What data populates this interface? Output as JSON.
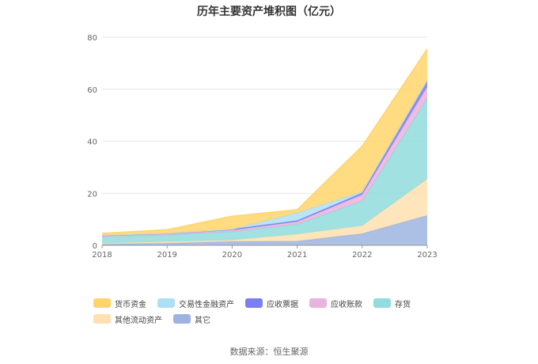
{
  "chart_data": {
    "type": "area",
    "stacked": true,
    "title": "历年主要资产堆积图（亿元）",
    "categories": [
      "2018",
      "2019",
      "2020",
      "2021",
      "2022",
      "2023"
    ],
    "ylim": [
      0,
      80
    ],
    "yticks": [
      0,
      20,
      40,
      60,
      80
    ],
    "grid": true,
    "legend_position": "bottom",
    "series": [
      {
        "name": "其它",
        "color": "#9db4e0",
        "values": [
          0.5,
          0.8,
          1.5,
          1.6,
          4.5,
          11.5
        ]
      },
      {
        "name": "其他流动资产",
        "color": "#ffe0b0",
        "values": [
          0.3,
          0.6,
          0.5,
          2.7,
          3.0,
          14.0
        ]
      },
      {
        "name": "存货",
        "color": "#91dcdc",
        "values": [
          2.5,
          2.6,
          3.2,
          3.8,
          9.5,
          31.0
        ]
      },
      {
        "name": "应收账款",
        "color": "#e8b3dd",
        "values": [
          0.3,
          0.3,
          0.6,
          1.0,
          2.5,
          4.5
        ]
      },
      {
        "name": "应收票据",
        "color": "#7b7ff0",
        "values": [
          0.3,
          0.3,
          0.4,
          0.4,
          0.6,
          2.0
        ]
      },
      {
        "name": "交易性金融资产",
        "color": "#aee0f5",
        "values": [
          0.0,
          0.0,
          0.0,
          3.0,
          0.5,
          0.5
        ]
      },
      {
        "name": "货币资金",
        "color": "#ffd56b",
        "values": [
          0.7,
          1.4,
          5.0,
          1.2,
          17.5,
          12.0
        ]
      }
    ]
  },
  "legend_order": [
    6,
    5,
    4,
    3,
    2,
    1,
    0
  ],
  "source": {
    "label": "数据来源：",
    "value": "恒生聚源"
  }
}
